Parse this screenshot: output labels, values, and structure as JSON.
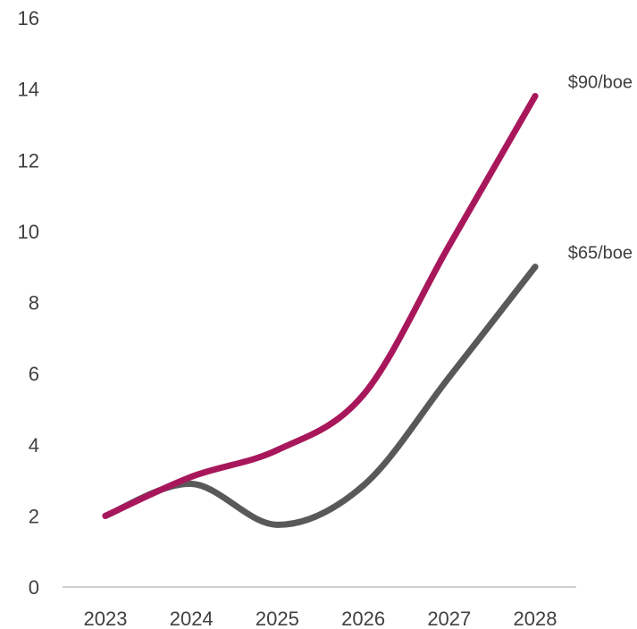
{
  "chart_data": {
    "type": "line",
    "categories": [
      "2023",
      "2024",
      "2025",
      "2026",
      "2027",
      "2028"
    ],
    "ylim": [
      0,
      16
    ],
    "yticks": [
      "0",
      "2",
      "4",
      "6",
      "8",
      "10",
      "12",
      "14",
      "16"
    ],
    "grid": false,
    "series": [
      {
        "name": "$90/boe",
        "color": "#a8175c",
        "values": [
          2.0,
          3.1,
          3.85,
          5.4,
          9.6,
          13.8
        ]
      },
      {
        "name": "$65/boe",
        "color": "#595959",
        "values": [
          2.0,
          2.9,
          1.75,
          2.85,
          5.9,
          9.0
        ]
      }
    ],
    "axis_color": "#bfbfbf"
  }
}
